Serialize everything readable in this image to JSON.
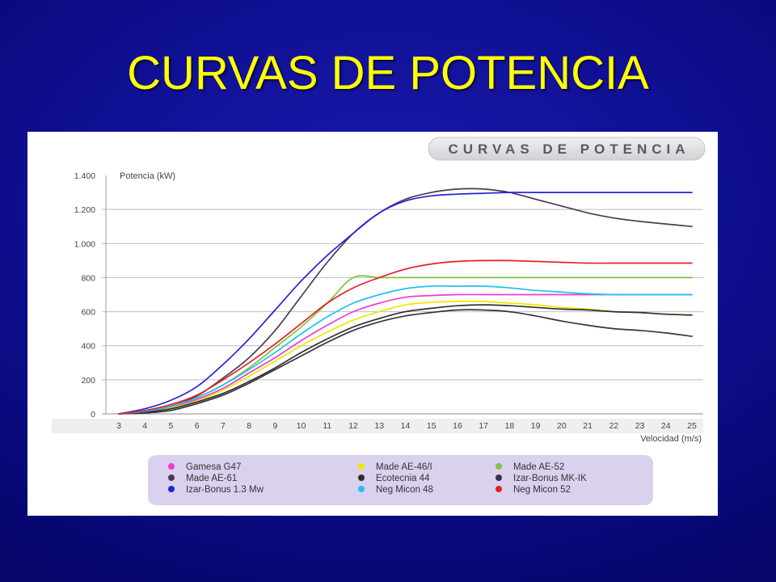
{
  "slide": {
    "title": "CURVAS DE POTENCIA"
  },
  "colors": {
    "title": "#ffff00",
    "chart_background": "#ffffff",
    "grid": "#bdbdbd",
    "legend_background": "#d9d1ee",
    "banner_background": "#dedee2"
  },
  "chart_data": {
    "type": "line",
    "title": "CURVAS DE POTENCIA",
    "ylabel": "Potencia (kW)",
    "xlabel": "Velocidad (m/s)",
    "x": [
      3,
      4,
      5,
      6,
      7,
      8,
      9,
      10,
      11,
      12,
      13,
      14,
      15,
      16,
      17,
      18,
      19,
      20,
      21,
      22,
      23,
      24,
      25
    ],
    "xlim": [
      3,
      25
    ],
    "ylim": [
      0,
      1400
    ],
    "y_ticks": [
      0,
      200,
      400,
      600,
      800,
      1000,
      1200,
      1400
    ],
    "y_tick_labels": [
      "0",
      "200",
      "400",
      "600",
      "800",
      "1.000",
      "1.200",
      "1.400"
    ],
    "grid": "horizontal",
    "legend_position": "bottom",
    "series": [
      {
        "name": "Gamesa G47",
        "color": "#e83fcf",
        "values": [
          0,
          15,
          40,
          85,
          150,
          240,
          330,
          430,
          520,
          600,
          650,
          685,
          695,
          700,
          700,
          700,
          700,
          700,
          700,
          700,
          700,
          700,
          700
        ]
      },
      {
        "name": "Made AE-46/I",
        "color": "#f2e600",
        "values": [
          0,
          10,
          35,
          75,
          140,
          220,
          310,
          400,
          480,
          550,
          600,
          640,
          655,
          660,
          660,
          650,
          640,
          625,
          615,
          600,
          595,
          585,
          580
        ]
      },
      {
        "name": "Made AE-52",
        "color": "#7cc540",
        "values": [
          0,
          15,
          45,
          95,
          170,
          270,
          390,
          510,
          650,
          800,
          800,
          800,
          800,
          800,
          800,
          800,
          800,
          800,
          800,
          800,
          800,
          800,
          800
        ]
      },
      {
        "name": "Made AE-61",
        "color": "#4d3a52",
        "values": [
          0,
          15,
          45,
          105,
          210,
          330,
          490,
          690,
          890,
          1060,
          1180,
          1260,
          1300,
          1320,
          1320,
          1300,
          1260,
          1220,
          1180,
          1150,
          1130,
          1115,
          1100
        ]
      },
      {
        "name": "Ecotecnia 44",
        "color": "#2f2f2f",
        "values": [
          0,
          10,
          30,
          70,
          120,
          190,
          270,
          360,
          440,
          510,
          560,
          600,
          620,
          635,
          640,
          635,
          625,
          615,
          610,
          600,
          595,
          585,
          580
        ]
      },
      {
        "name": "Izar-Bonus MK-IK",
        "color": "#3c3046",
        "values": [
          0,
          5,
          20,
          60,
          110,
          180,
          260,
          340,
          420,
          490,
          540,
          575,
          595,
          610,
          610,
          600,
          575,
          545,
          520,
          500,
          490,
          475,
          455
        ]
      },
      {
        "name": "Izar-Bonus 1.3 Mw",
        "color": "#2323d6",
        "values": [
          0,
          30,
          80,
          160,
          290,
          440,
          610,
          780,
          930,
          1060,
          1180,
          1250,
          1280,
          1290,
          1295,
          1300,
          1300,
          1300,
          1300,
          1300,
          1300,
          1300,
          1300
        ]
      },
      {
        "name": "Neg Micon 48",
        "color": "#1ec3f0",
        "values": [
          0,
          15,
          45,
          95,
          170,
          260,
          360,
          470,
          570,
          650,
          700,
          735,
          750,
          750,
          750,
          740,
          725,
          715,
          705,
          700,
          700,
          700,
          700
        ]
      },
      {
        "name": "Neg Micon 52",
        "color": "#e52222",
        "values": [
          0,
          20,
          55,
          110,
          200,
          300,
          410,
          530,
          650,
          740,
          800,
          850,
          880,
          895,
          900,
          900,
          895,
          890,
          885,
          885,
          885,
          885,
          885
        ]
      }
    ]
  }
}
